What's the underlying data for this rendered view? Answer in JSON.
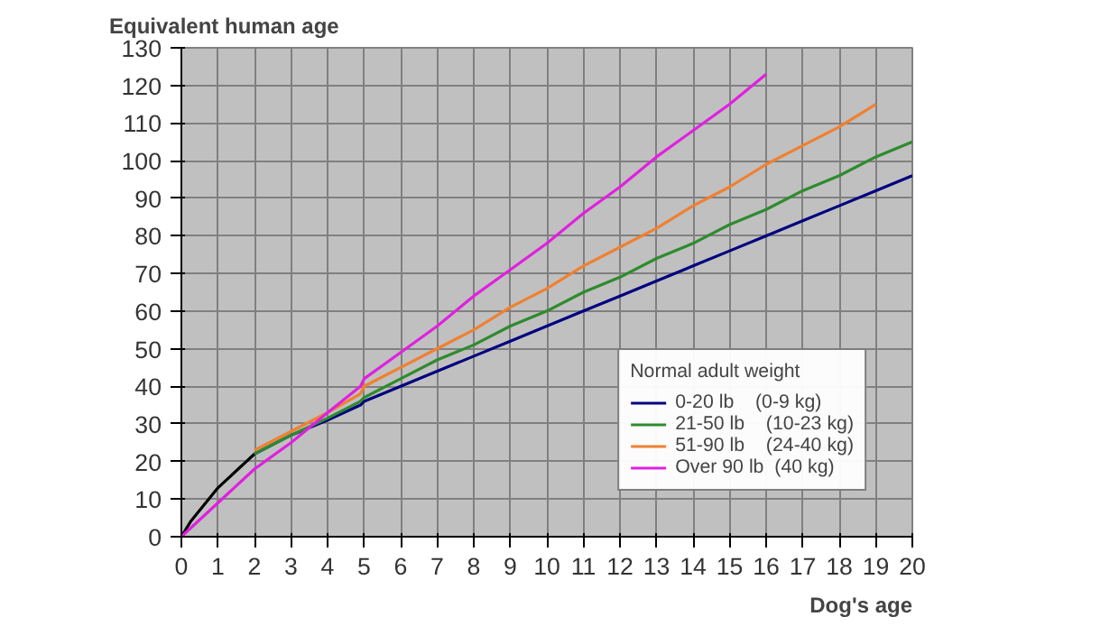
{
  "chart_data": {
    "type": "line",
    "xlabel": "Dog's age",
    "ylabel": "Equivalent human age",
    "legend_title": "Normal adult weight",
    "xlim": [
      0,
      20
    ],
    "ylim": [
      0,
      130
    ],
    "xticks": [
      0,
      1,
      2,
      3,
      4,
      5,
      6,
      7,
      8,
      9,
      10,
      11,
      12,
      13,
      14,
      15,
      16,
      17,
      18,
      19,
      20
    ],
    "yticks": [
      0,
      10,
      20,
      30,
      40,
      50,
      60,
      70,
      80,
      90,
      100,
      110,
      120,
      130
    ],
    "grid": true,
    "legend": "bottom right",
    "marker": "none",
    "line_style": "solid",
    "series": [
      {
        "color": "#000000",
        "x": [
          0,
          0.25,
          0.5,
          1,
          1.5,
          2
        ],
        "values": [
          0,
          4,
          7,
          13,
          17.5,
          22
        ]
      },
      {
        "name": "0-20 lb    (0-9 kg)",
        "color": "#000080",
        "x": [
          2,
          3,
          4,
          4.9,
          5,
          6,
          7,
          8,
          9,
          10,
          11,
          12,
          13,
          14,
          15,
          16,
          17,
          18,
          19,
          20
        ],
        "values": [
          22,
          27,
          31,
          35,
          36,
          40,
          44,
          48,
          52,
          56,
          60,
          64,
          68,
          72,
          76,
          80,
          84,
          88,
          92,
          96
        ]
      },
      {
        "name": "21-50 lb    (10-23 kg)",
        "color": "#2e8b2e",
        "x": [
          2,
          3,
          4,
          4.9,
          5,
          6,
          7,
          8,
          9,
          10,
          11,
          12,
          13,
          14,
          15,
          16,
          17,
          18,
          19,
          20
        ],
        "values": [
          22,
          27,
          31.5,
          36,
          37,
          42,
          47,
          51,
          56,
          60,
          65,
          69,
          74,
          78,
          83,
          87,
          92,
          96,
          101,
          105
        ]
      },
      {
        "name": "51-90 lb    (24-40 kg)",
        "color": "#f08030",
        "x": [
          2,
          3,
          4,
          4.9,
          5,
          6,
          7,
          8,
          9,
          10,
          11,
          12,
          13,
          14,
          15,
          16,
          17,
          18,
          19
        ],
        "values": [
          23,
          28,
          33,
          38,
          40,
          45,
          50,
          55,
          61,
          66,
          72,
          77,
          82,
          88,
          93,
          99,
          104,
          109,
          115
        ]
      },
      {
        "name": "Over 90 lb  (40 kg)",
        "color": "#e020e0",
        "x": [
          0,
          1,
          2,
          3,
          4,
          4.9,
          5,
          6,
          7,
          8,
          9,
          10,
          11,
          12,
          13,
          14,
          15,
          16
        ],
        "values": [
          0,
          9,
          18,
          25,
          33,
          40,
          42,
          49,
          56,
          64,
          71,
          78,
          86,
          93,
          101,
          108,
          115,
          123
        ]
      }
    ]
  }
}
